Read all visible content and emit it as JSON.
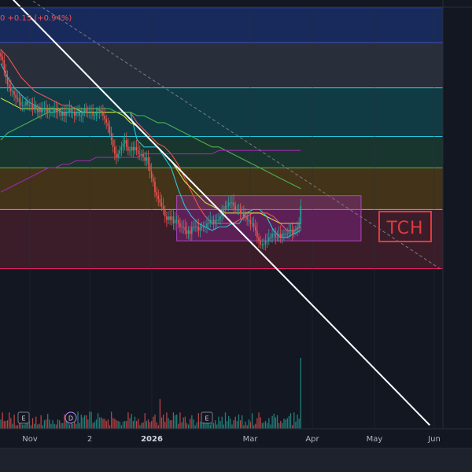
{
  "header": {
    "price_change_text": "0  +0.15 (+0.94%)"
  },
  "watermark": {
    "text": "TCH"
  },
  "x_axis": {
    "labels": [
      "Nov",
      "2",
      "2026",
      "Mar",
      "Apr",
      "May",
      "Jun"
    ],
    "bold_label": "2026"
  },
  "event_markers": [
    {
      "type": "earnings",
      "label": "E"
    },
    {
      "type": "dividend",
      "label": "D"
    },
    {
      "type": "earnings",
      "label": "E"
    }
  ],
  "colors": {
    "background": "#131722",
    "up_candle": "#26a69a",
    "down_candle": "#ef5350",
    "trendline": "#ffffff",
    "projection_line": "#787b86",
    "ma_fast": "#26c6da",
    "ma_mid": "#ef5350",
    "ma_slow": "#cddc39",
    "ma_long": "#4caf50",
    "ma_200": "#9c27b0",
    "box": "#9c27b0",
    "logo": "#e03a3e"
  },
  "chart_data": {
    "type": "candlestick",
    "y_scale": "unlabeled",
    "zones": [
      {
        "name": "zone-1",
        "color": "#1e3a8a",
        "low": 0.9,
        "high": 1.0
      },
      {
        "name": "zone-2",
        "color": "#3d4150",
        "low": 0.77,
        "high": 0.9
      },
      {
        "name": "zone-3",
        "color": "#0f5a63",
        "low": 0.63,
        "high": 0.77
      },
      {
        "name": "zone-4",
        "color": "#1f5038",
        "low": 0.54,
        "high": 0.63
      },
      {
        "name": "zone-5",
        "color": "#6b4a12",
        "low": 0.42,
        "high": 0.54
      },
      {
        "name": "zone-6",
        "color": "#5c2330",
        "low": 0.25,
        "high": 0.42
      }
    ],
    "box": {
      "x_start": 105,
      "x_end": 215,
      "low": 0.33,
      "high": 0.46
    },
    "trendline": {
      "x0": 0,
      "y0": 1.06,
      "x1": 256,
      "y1": -0.2
    },
    "projection_line": {
      "x0": 0,
      "y0": 1.08,
      "x1": 262,
      "y1": 0.25
    },
    "candle_count": 180,
    "closes": [
      0.86,
      0.85,
      0.82,
      0.8,
      0.78,
      0.77,
      0.76,
      0.76,
      0.75,
      0.74,
      0.74,
      0.73,
      0.72,
      0.72,
      0.72,
      0.73,
      0.72,
      0.72,
      0.72,
      0.71,
      0.72,
      0.71,
      0.7,
      0.71,
      0.7,
      0.71,
      0.71,
      0.7,
      0.71,
      0.7,
      0.7,
      0.7,
      0.71,
      0.7,
      0.7,
      0.7,
      0.69,
      0.7,
      0.69,
      0.7,
      0.7,
      0.71,
      0.7,
      0.7,
      0.69,
      0.7,
      0.7,
      0.69,
      0.69,
      0.7,
      0.71,
      0.7,
      0.7,
      0.7,
      0.7,
      0.69,
      0.69,
      0.7,
      0.7,
      0.7,
      0.7,
      0.69,
      0.68,
      0.67,
      0.66,
      0.64,
      0.62,
      0.6,
      0.58,
      0.57,
      0.58,
      0.59,
      0.6,
      0.61,
      0.62,
      0.6,
      0.59,
      0.59,
      0.6,
      0.59,
      0.6,
      0.59,
      0.58,
      0.58,
      0.58,
      0.57,
      0.56,
      0.57,
      0.55,
      0.53,
      0.51,
      0.5,
      0.47,
      0.46,
      0.45,
      0.44,
      0.43,
      0.42,
      0.4,
      0.39,
      0.4,
      0.39,
      0.4,
      0.38,
      0.39,
      0.39,
      0.38,
      0.37,
      0.37,
      0.37,
      0.36,
      0.35,
      0.36,
      0.35,
      0.37,
      0.37,
      0.37,
      0.37,
      0.36,
      0.37,
      0.37,
      0.37,
      0.37,
      0.38,
      0.38,
      0.39,
      0.39,
      0.38,
      0.39,
      0.39,
      0.39,
      0.4,
      0.41,
      0.42,
      0.43,
      0.43,
      0.44,
      0.44,
      0.44,
      0.43,
      0.42,
      0.42,
      0.42,
      0.41,
      0.41,
      0.4,
      0.4,
      0.39,
      0.39,
      0.38,
      0.38,
      0.37,
      0.36,
      0.34,
      0.33,
      0.32,
      0.32,
      0.32,
      0.33,
      0.33,
      0.34,
      0.34,
      0.35,
      0.35,
      0.34,
      0.34,
      0.35,
      0.34,
      0.35,
      0.35,
      0.35,
      0.35,
      0.36,
      0.36,
      0.35,
      0.36,
      0.36,
      0.37,
      0.38,
      0.43
    ],
    "volumes": [
      0.13,
      0.23,
      0.11,
      0.11,
      0.12,
      0.23,
      0.15,
      0.07,
      0.2,
      0.05,
      0.05,
      0.1,
      0.24,
      0.06,
      0.06,
      0.15,
      0.19,
      0.11,
      0.05,
      0.15,
      0.07,
      0.17,
      0.06,
      0.07,
      0.19,
      0.05,
      0.12,
      0.13,
      0.21,
      0.13,
      0.07,
      0.12,
      0.07,
      0.06,
      0.13,
      0.12,
      0.08,
      0.08,
      0.2,
      0.21,
      0.15,
      0.06,
      0.16,
      0.07,
      0.09,
      0.07,
      0.24,
      0.08,
      0.2,
      0.16,
      0.19,
      0.19,
      0.13,
      0.24,
      0.24,
      0.08,
      0.1,
      0.13,
      0.22,
      0.16,
      0.16,
      0.14,
      0.14,
      0.11,
      0.13,
      0.05,
      0.24,
      0.15,
      0.14,
      0.12,
      0.11,
      0.1,
      0.05,
      0.1,
      0.11,
      0.11,
      0.23,
      0.15,
      0.21,
      0.11,
      0.17,
      0.11,
      0.14,
      0.05,
      0.08,
      0.09,
      0.22,
      0.11,
      0.13,
      0.09,
      0.11,
      0.17,
      0.2,
      0.09,
      0.05,
      0.42,
      0.16,
      0.2,
      0.1,
      0.23,
      0.15,
      0.12,
      0.12,
      0.23,
      0.19,
      0.2,
      0.07,
      0.23,
      0.09,
      0.16,
      0.17,
      0.08,
      0.06,
      0.14,
      0.19,
      0.13,
      0.05,
      0.09,
      0.22,
      0.1,
      0.15,
      0.2,
      0.16,
      0.13,
      0.09,
      0.06,
      0.2,
      0.08,
      0.12,
      0.06,
      0.17,
      0.11,
      0.17,
      0.06,
      0.23,
      0.11,
      0.18,
      0.14,
      0.06,
      0.12,
      0.17,
      0.11,
      0.2,
      0.12,
      0.19,
      0.05,
      0.1,
      0.05,
      0.13,
      0.1,
      0.22,
      0.05,
      0.07,
      0.15,
      0.23,
      0.16,
      0.08,
      0.09,
      0.11,
      0.08,
      0.15,
      0.06,
      0.18,
      0.21,
      0.16,
      0.19,
      0.08,
      0.11,
      0.08,
      0.14,
      0.13,
      0.15,
      0.18,
      0.22,
      0.05,
      0.23,
      0.1,
      0.2,
      0.14,
      1.0
    ],
    "ma_lines": [
      {
        "name": "ma-fast",
        "color": "#26c6da",
        "values": [
          0.84,
          0.8,
          0.77,
          0.75,
          0.73,
          0.72,
          0.71,
          0.71,
          0.71,
          0.7,
          0.7,
          0.7,
          0.7,
          0.7,
          0.7,
          0.7,
          0.7,
          0.7,
          0.7,
          0.7,
          0.62,
          0.6,
          0.6,
          0.6,
          0.57,
          0.54,
          0.48,
          0.43,
          0.4,
          0.38,
          0.37,
          0.36,
          0.37,
          0.37,
          0.38,
          0.38,
          0.41,
          0.42,
          0.42,
          0.4,
          0.36,
          0.34,
          0.34,
          0.35,
          0.36
        ]
      },
      {
        "name": "ma-mid",
        "color": "#ef5350",
        "values": [
          0.88,
          0.86,
          0.83,
          0.8,
          0.78,
          0.76,
          0.75,
          0.74,
          0.73,
          0.72,
          0.72,
          0.71,
          0.71,
          0.71,
          0.71,
          0.7,
          0.7,
          0.7,
          0.7,
          0.7,
          0.67,
          0.65,
          0.63,
          0.61,
          0.6,
          0.58,
          0.55,
          0.51,
          0.47,
          0.43,
          0.4,
          0.38,
          0.38,
          0.38,
          0.38,
          0.39,
          0.4,
          0.41,
          0.41,
          0.41,
          0.4,
          0.38,
          0.36,
          0.36,
          0.37
        ]
      },
      {
        "name": "ma-slow",
        "color": "#cddc39",
        "values": [
          0.74,
          0.73,
          0.72,
          0.71,
          0.71,
          0.71,
          0.71,
          0.71,
          0.71,
          0.71,
          0.71,
          0.71,
          0.7,
          0.7,
          0.7,
          0.7,
          0.7,
          0.7,
          0.69,
          0.67,
          0.66,
          0.64,
          0.62,
          0.6,
          0.58,
          0.56,
          0.53,
          0.5,
          0.48,
          0.46,
          0.44,
          0.43,
          0.42,
          0.41,
          0.41,
          0.41,
          0.41,
          0.41,
          0.41,
          0.4,
          0.39,
          0.38,
          0.38,
          0.38,
          0.38
        ]
      },
      {
        "name": "ma-long",
        "color": "#4caf50",
        "values": [
          0.62,
          0.64,
          0.65,
          0.66,
          0.67,
          0.68,
          0.69,
          0.7,
          0.7,
          0.71,
          0.71,
          0.71,
          0.71,
          0.71,
          0.71,
          0.71,
          0.71,
          0.7,
          0.7,
          0.7,
          0.69,
          0.69,
          0.68,
          0.67,
          0.67,
          0.66,
          0.65,
          0.64,
          0.63,
          0.62,
          0.61,
          0.6,
          0.6,
          0.59,
          0.58,
          0.57,
          0.56,
          0.55,
          0.54,
          0.53,
          0.52,
          0.51,
          0.5,
          0.49,
          0.48
        ]
      },
      {
        "name": "ma-200",
        "color": "#9c27b0",
        "values": [
          0.47,
          0.48,
          0.49,
          0.5,
          0.51,
          0.52,
          0.53,
          0.54,
          0.54,
          0.55,
          0.55,
          0.56,
          0.56,
          0.56,
          0.57,
          0.57,
          0.57,
          0.57,
          0.57,
          0.57,
          0.57,
          0.58,
          0.58,
          0.58,
          0.58,
          0.58,
          0.58,
          0.58,
          0.58,
          0.58,
          0.58,
          0.58,
          0.59,
          0.59,
          0.59,
          0.59,
          0.59,
          0.59,
          0.59,
          0.59,
          0.59,
          0.59,
          0.59,
          0.59,
          0.59
        ]
      }
    ]
  }
}
